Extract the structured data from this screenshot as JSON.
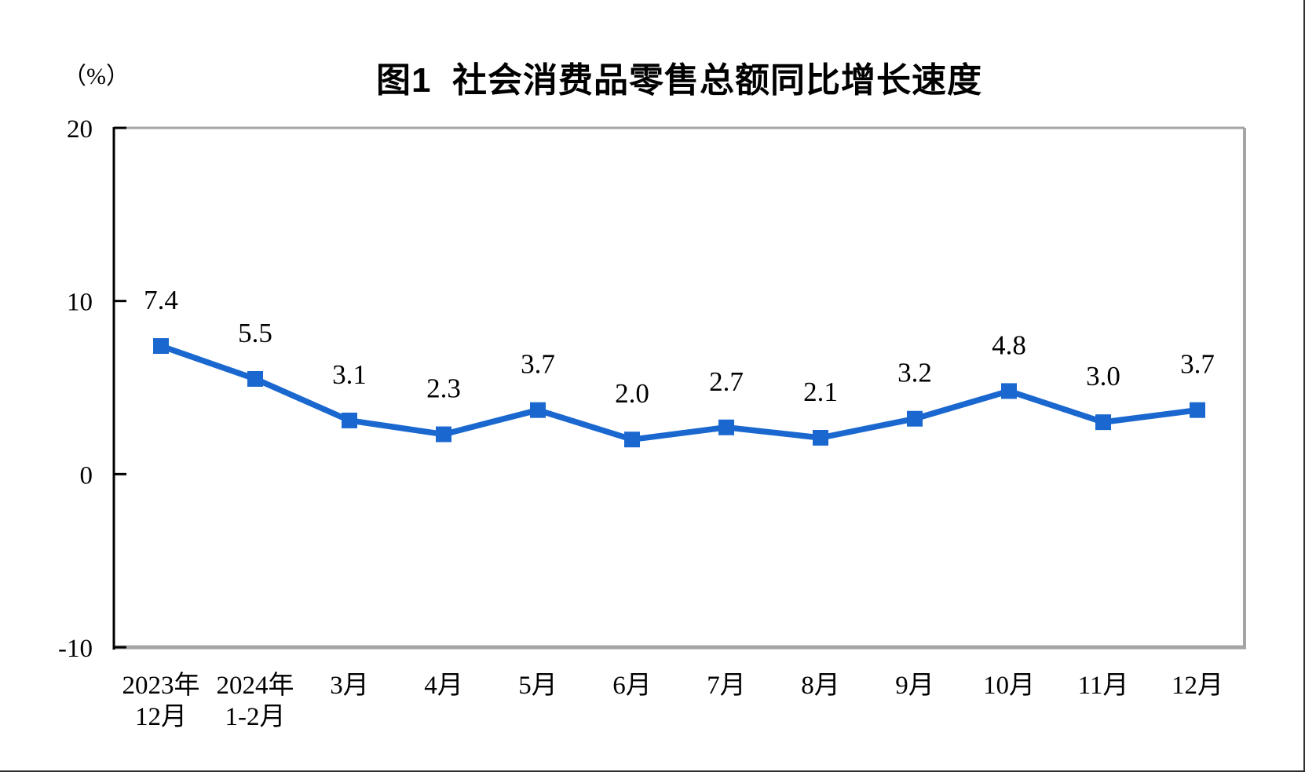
{
  "chart_data": {
    "type": "line",
    "title": "图1  社会消费品零售总额同比增长速度",
    "unit_label": "（%）",
    "categories": [
      "2023年\n12月",
      "2024年\n1-2月",
      "3月",
      "4月",
      "5月",
      "6月",
      "7月",
      "8月",
      "9月",
      "10月",
      "11月",
      "12月"
    ],
    "values": [
      7.4,
      5.5,
      3.1,
      2.3,
      3.7,
      2.0,
      2.7,
      2.1,
      3.2,
      4.8,
      3.0,
      3.7
    ],
    "data_labels": [
      "7.4",
      "5.5",
      "3.1",
      "2.3",
      "3.7",
      "2.0",
      "2.7",
      "2.1",
      "3.2",
      "4.8",
      "3.0",
      "3.7"
    ],
    "ylim": [
      -10,
      20
    ],
    "yticks": [
      20,
      10,
      0,
      -10
    ],
    "grid": false,
    "legend_position": "none",
    "line_color": "#1a68cf",
    "marker_shape": "square",
    "marker_color": "#1a68cf",
    "axis_line_color": "#000000",
    "plot_border_color": "#a5a5a5",
    "label_color": "#000000",
    "page_border_color": "#2f2f2f"
  }
}
